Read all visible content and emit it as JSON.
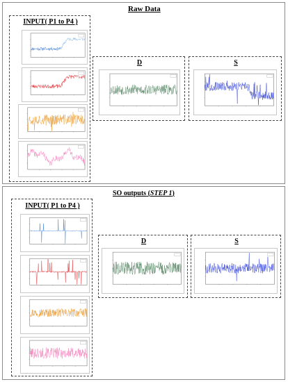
{
  "panels": [
    {
      "title": "Raw Data",
      "input_label": "INPUT( P1 to P4 )",
      "d_label": "D",
      "s_label": "S"
    },
    {
      "title": "SO outputs",
      "title_step": "STEP 1",
      "input_label": "INPUT( P1 to P4 )",
      "d_label": "D",
      "s_label": "S"
    }
  ],
  "colors": {
    "p1": "#3a7bd5",
    "p1b": "#7fb3ea",
    "p2": "#e0282c",
    "p3": "#e8962a",
    "p4": "#f07ab8",
    "d": "#4f7f5e",
    "s": "#2b3bd8"
  }
}
